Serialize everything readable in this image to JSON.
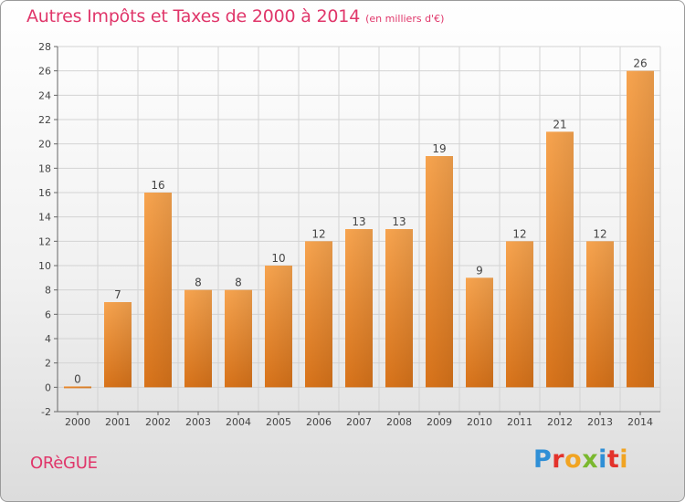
{
  "header": {
    "title": "Autres Impôts et Taxes de 2000 à 2014",
    "subtitle": "(en milliers d'€)"
  },
  "footer": {
    "commune": "ORèGUE",
    "logo": [
      "P",
      "r",
      "o",
      "x",
      "i",
      "t",
      "i"
    ]
  },
  "colors": {
    "title": "#e0366a",
    "bar_light": "#f7a44f",
    "bar_dark": "#d8731a",
    "grid": "#d0d0d0"
  },
  "chart_data": {
    "type": "bar",
    "title": "Autres Impôts et Taxes de 2000 à 2014",
    "subtitle": "(en milliers d'€)",
    "categories": [
      "2000",
      "2001",
      "2002",
      "2003",
      "2004",
      "2005",
      "2006",
      "2007",
      "2008",
      "2009",
      "2010",
      "2011",
      "2012",
      "2013",
      "2014"
    ],
    "values": [
      0,
      7,
      16,
      8,
      8,
      10,
      12,
      13,
      13,
      19,
      9,
      12,
      21,
      12,
      26
    ],
    "ylim": [
      -2,
      28
    ],
    "yticks": [
      -2,
      0,
      2,
      4,
      6,
      8,
      10,
      12,
      14,
      16,
      18,
      20,
      22,
      24,
      26,
      28
    ],
    "grid": true,
    "xlabel": "",
    "ylabel": ""
  }
}
